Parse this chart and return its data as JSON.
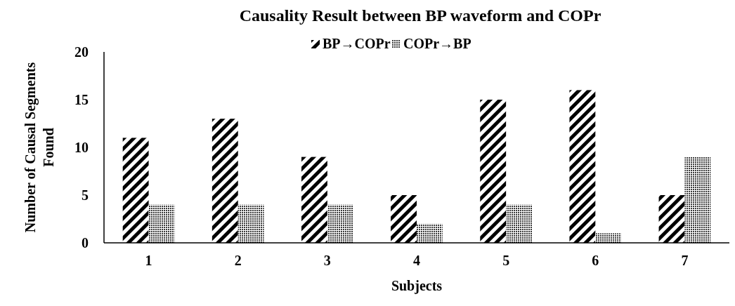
{
  "chart_data": {
    "type": "bar",
    "title": "Causality Result between BP waveform and COPr",
    "xlabel": "Subjects",
    "ylabel": "Number of Causal Segments Found",
    "categories": [
      "1",
      "2",
      "3",
      "4",
      "5",
      "6",
      "7"
    ],
    "series": [
      {
        "name": "BP→COPr",
        "color": "#000000",
        "values": [
          11,
          13,
          9,
          5,
          15,
          16,
          5
        ]
      },
      {
        "name": "COPr→BP",
        "color": "#3a3a3a",
        "values": [
          4,
          4,
          4,
          2,
          4,
          1,
          9
        ]
      }
    ],
    "ylim": [
      0,
      20
    ],
    "yticks": [
      0,
      5,
      10,
      15,
      20
    ],
    "grid": false,
    "legend": "top"
  }
}
